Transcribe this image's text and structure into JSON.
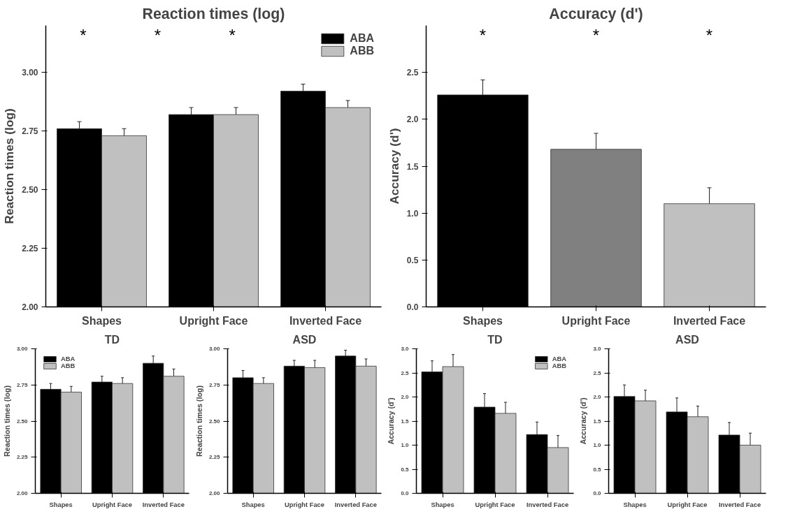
{
  "chart_data": [
    {
      "type": "bar",
      "title": "Reaction times (log)",
      "ylabel": "Reaction times (log)",
      "categories": [
        "Shapes",
        "Upright Face",
        "Inverted Face"
      ],
      "ylim": [
        2.0,
        3.2
      ],
      "yticks": [
        {
          "value": 2.0,
          "label": "2.00"
        },
        2.25,
        {
          "value": 2.5,
          "label": "2.50"
        },
        2.75,
        {
          "value": 3.0,
          "label": "3.00"
        }
      ],
      "legend": "top right",
      "grid": false,
      "series": [
        {
          "name": "ABA",
          "color": "#000000",
          "values": [
            2.76,
            2.82,
            2.92
          ],
          "errors": [
            0.03,
            0.03,
            0.03
          ]
        },
        {
          "name": "ABB",
          "color": "#c0c0c0",
          "values": [
            2.73,
            2.82,
            2.85
          ],
          "errors": [
            0.03,
            0.03,
            0.03
          ]
        }
      ],
      "annotations": [
        "*",
        "*",
        "*"
      ]
    },
    {
      "type": "bar",
      "title": "TD",
      "ylabel": "Reaction times (log)",
      "categories": [
        "Shapes",
        "Upright Face",
        "Inverted Face"
      ],
      "ylim": [
        2.0,
        3.0
      ],
      "yticks": [
        {
          "value": 2.0,
          "label": "2.00"
        },
        2.25,
        {
          "value": 2.5,
          "label": "2.50"
        },
        2.75,
        {
          "value": 3.0,
          "label": "3.00"
        }
      ],
      "legend": "top left",
      "grid": false,
      "series": [
        {
          "name": "ABA",
          "color": "#000000",
          "values": [
            2.72,
            2.77,
            2.9
          ],
          "errors": [
            0.04,
            0.04,
            0.05
          ]
        },
        {
          "name": "ABB",
          "color": "#c0c0c0",
          "values": [
            2.7,
            2.76,
            2.81
          ],
          "errors": [
            0.04,
            0.04,
            0.05
          ]
        }
      ]
    },
    {
      "type": "bar",
      "title": "ASD",
      "ylabel": "Reaction times (log)",
      "categories": [
        "Shapes",
        "Upright Face",
        "Inverted Face"
      ],
      "ylim": [
        2.0,
        3.0
      ],
      "yticks": [
        {
          "value": 2.0,
          "label": "2.00"
        },
        2.25,
        {
          "value": 2.5,
          "label": "2.50"
        },
        2.75,
        {
          "value": 3.0,
          "label": "3.00"
        }
      ],
      "grid": false,
      "series": [
        {
          "color": "#000000",
          "values": [
            2.8,
            2.88,
            2.95
          ],
          "errors": [
            0.05,
            0.04,
            0.04
          ]
        },
        {
          "color": "#c0c0c0",
          "values": [
            2.76,
            2.87,
            2.88
          ],
          "errors": [
            0.04,
            0.05,
            0.05
          ]
        }
      ]
    },
    {
      "type": "bar",
      "title": "Accuracy (d')",
      "ylabel": "Accuracy (d')",
      "categories": [
        "Shapes",
        "Upright Face",
        "Inverted Face"
      ],
      "ylim": [
        0.0,
        3.0
      ],
      "yticks": [
        {
          "value": 0.0,
          "label": "0.0"
        },
        0.5,
        {
          "value": 1.0,
          "label": "1.0"
        },
        1.5,
        {
          "value": 2.0,
          "label": "2.0"
        },
        2.5
      ],
      "grid": false,
      "series": [
        {
          "colors": [
            "#000000",
            "#808080",
            "#c0c0c0"
          ],
          "values": [
            2.26,
            1.68,
            1.1
          ],
          "errors": [
            0.16,
            0.17,
            0.17
          ]
        }
      ],
      "annotations": [
        "*",
        "*",
        "*"
      ]
    },
    {
      "type": "bar",
      "title": "TD",
      "ylabel": "Accuracy (d')",
      "categories": [
        "Shapes",
        "Upright Face",
        "Inverted Face"
      ],
      "ylim": [
        0.0,
        3.0
      ],
      "yticks": [
        {
          "value": 0.0,
          "label": "0.0"
        },
        0.5,
        {
          "value": 1.0,
          "label": "1.0"
        },
        1.5,
        {
          "value": 2.0,
          "label": "2.0"
        },
        2.5,
        {
          "value": 3.0,
          "label": "3.0"
        }
      ],
      "legend": "top right",
      "grid": false,
      "series": [
        {
          "name": "ABA",
          "color": "#000000",
          "values": [
            2.52,
            1.79,
            1.22
          ],
          "errors": [
            0.23,
            0.28,
            0.26
          ]
        },
        {
          "name": "ABB",
          "color": "#c0c0c0",
          "values": [
            2.63,
            1.66,
            0.95
          ],
          "errors": [
            0.25,
            0.23,
            0.25
          ]
        }
      ]
    },
    {
      "type": "bar",
      "title": "ASD",
      "ylabel": "Accuracy (d')",
      "categories": [
        "Shapes",
        "Upright Face",
        "Inverted Face"
      ],
      "ylim": [
        0.0,
        3.0
      ],
      "yticks": [
        {
          "value": 0.0,
          "label": "0.0"
        },
        0.5,
        {
          "value": 1.0,
          "label": "1.0"
        },
        1.5,
        {
          "value": 2.0,
          "label": "2.0"
        },
        2.5,
        {
          "value": 3.0,
          "label": "3.0"
        }
      ],
      "grid": false,
      "series": [
        {
          "color": "#000000",
          "values": [
            2.01,
            1.69,
            1.21
          ],
          "errors": [
            0.24,
            0.29,
            0.26
          ]
        },
        {
          "color": "#c0c0c0",
          "values": [
            1.92,
            1.59,
            1.0
          ],
          "errors": [
            0.22,
            0.22,
            0.25
          ]
        }
      ]
    }
  ]
}
